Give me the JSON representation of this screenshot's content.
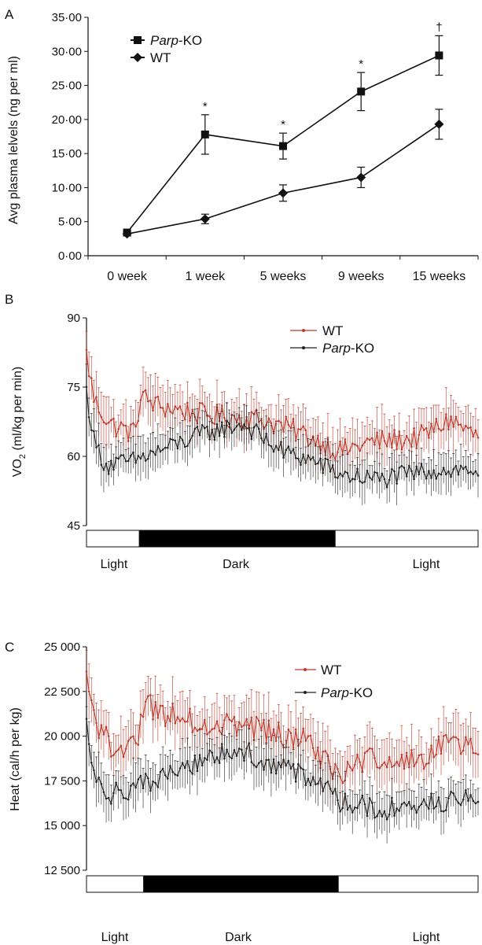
{
  "chart_data": [
    {
      "panel": "A",
      "type": "line",
      "ylabel": "Avg plasma lelvels (ng per ml)",
      "categories": [
        "0 week",
        "1 week",
        "5 weeks",
        "9 weeks",
        "15 weeks"
      ],
      "yticks": [
        "0·00",
        "5·00",
        "10·00",
        "15·00",
        "20·00",
        "25·00",
        "30·00",
        "35·00"
      ],
      "ylim": [
        0,
        35
      ],
      "series": [
        {
          "name": "Parp-KO",
          "name_italic": "Parp",
          "name_suffix": "-KO",
          "marker": "square",
          "color": "#111111",
          "values": [
            3.4,
            17.8,
            16.1,
            24.1,
            29.4
          ],
          "errors": [
            0.3,
            2.9,
            1.9,
            2.8,
            2.9
          ]
        },
        {
          "name": "WT",
          "marker": "diamond",
          "color": "#111111",
          "values": [
            3.2,
            5.4,
            9.2,
            11.5,
            19.3
          ],
          "errors": [
            0.3,
            0.7,
            1.2,
            1.5,
            2.2
          ]
        }
      ],
      "significance": [
        "",
        "*",
        "*",
        "*",
        "†"
      ]
    },
    {
      "panel": "B",
      "type": "line",
      "ylabel_main": "VO",
      "ylabel_sub": "2",
      "ylabel_rest": " (ml/kg per min)",
      "yticks": [
        "45",
        "60",
        "75",
        "90"
      ],
      "ylim": [
        45,
        90
      ],
      "n_points": 160,
      "phases": [
        {
          "label": "Light",
          "fill": "#ffffff",
          "start": 0.0,
          "end": 0.135
        },
        {
          "label": "Dark",
          "fill": "#000000",
          "start": 0.135,
          "end": 0.635
        },
        {
          "label": "Light",
          "fill": "#ffffff",
          "start": 0.635,
          "end": 1.0
        }
      ],
      "series": [
        {
          "name": "WT",
          "color": "#c0392b",
          "keyframes": [
            [
              0,
              82
            ],
            [
              0.02,
              72
            ],
            [
              0.06,
              67
            ],
            [
              0.12,
              65
            ],
            [
              0.14,
              73
            ],
            [
              0.18,
              71
            ],
            [
              0.3,
              69
            ],
            [
              0.45,
              68
            ],
            [
              0.55,
              65
            ],
            [
              0.65,
              61
            ],
            [
              0.72,
              63
            ],
            [
              0.85,
              64
            ],
            [
              0.93,
              68
            ],
            [
              1.0,
              64
            ]
          ],
          "error": 4.5
        },
        {
          "name": "Parp-KO",
          "name_italic": "Parp",
          "name_suffix": "-KO",
          "color": "#222222",
          "keyframes": [
            [
              0,
              74
            ],
            [
              0.02,
              63
            ],
            [
              0.05,
              58
            ],
            [
              0.12,
              59
            ],
            [
              0.18,
              61
            ],
            [
              0.3,
              65
            ],
            [
              0.4,
              67
            ],
            [
              0.5,
              61
            ],
            [
              0.58,
              59
            ],
            [
              0.65,
              56
            ],
            [
              0.75,
              55
            ],
            [
              0.88,
              57
            ],
            [
              1.0,
              57
            ]
          ],
          "error": 3.8
        }
      ]
    },
    {
      "panel": "C",
      "type": "line",
      "ylabel": "Heat (cal/h per kg)",
      "yticks": [
        "12 500",
        "15 000",
        "17 500",
        "20 000",
        "22 500",
        "25 000"
      ],
      "ylim": [
        12500,
        25000
      ],
      "n_points": 160,
      "phases": [
        {
          "label": "Light",
          "fill": "#ffffff",
          "start": 0.0,
          "end": 0.146
        },
        {
          "label": "Dark",
          "fill": "#000000",
          "start": 0.146,
          "end": 0.643
        },
        {
          "label": "Light",
          "fill": "#ffffff",
          "start": 0.643,
          "end": 1.0
        }
      ],
      "series": [
        {
          "name": "WT",
          "color": "#c0392b",
          "keyframes": [
            [
              0,
              23700
            ],
            [
              0.02,
              20800
            ],
            [
              0.06,
              19500
            ],
            [
              0.13,
              19600
            ],
            [
              0.15,
              21800
            ],
            [
              0.2,
              21200
            ],
            [
              0.3,
              20800
            ],
            [
              0.45,
              20400
            ],
            [
              0.55,
              19800
            ],
            [
              0.65,
              17800
            ],
            [
              0.72,
              18600
            ],
            [
              0.85,
              18700
            ],
            [
              0.93,
              20000
            ],
            [
              1.0,
              18900
            ]
          ],
          "error": 1300
        },
        {
          "name": "Parp-KO",
          "name_italic": "Parp",
          "name_suffix": "-KO",
          "color": "#222222",
          "keyframes": [
            [
              0,
              21000
            ],
            [
              0.02,
              18000
            ],
            [
              0.05,
              16700
            ],
            [
              0.12,
              17000
            ],
            [
              0.2,
              17800
            ],
            [
              0.3,
              18800
            ],
            [
              0.4,
              19200
            ],
            [
              0.5,
              18200
            ],
            [
              0.58,
              17500
            ],
            [
              0.65,
              16300
            ],
            [
              0.75,
              15900
            ],
            [
              0.88,
              16200
            ],
            [
              1.0,
              16600
            ]
          ],
          "error": 1100
        }
      ]
    }
  ]
}
